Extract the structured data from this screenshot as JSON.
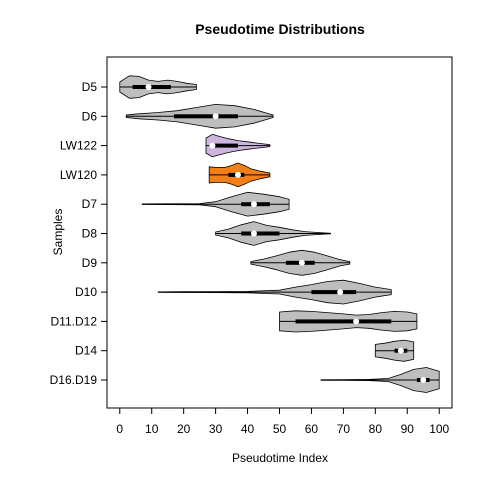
{
  "chart_data": {
    "type": "violin",
    "title": "Pseudotime Distributions",
    "xlabel": "Pseudotime Index",
    "ylabel": "Samples",
    "xlim": [
      -4,
      104
    ],
    "x_ticks": [
      0,
      10,
      20,
      30,
      40,
      50,
      60,
      70,
      80,
      90,
      100
    ],
    "grid": false,
    "legend": "none",
    "colors": {
      "default_fill": "#bebebe",
      "LW122": "#cdb5e0",
      "LW120": "#f57f17",
      "median": "#ffffff",
      "box": "#000000"
    },
    "categories": [
      "D5",
      "D6",
      "LW122",
      "LW120",
      "D7",
      "D8",
      "D9",
      "D10",
      "D11.D12",
      "D14",
      "D16.D19"
    ],
    "series": [
      {
        "label": "D5",
        "min": 0,
        "max": 24,
        "q1": 4,
        "median": 9,
        "q3": 16,
        "density": [
          [
            0,
            0.4
          ],
          [
            3,
            0.9
          ],
          [
            6,
            0.85
          ],
          [
            9,
            0.55
          ],
          [
            12,
            0.45
          ],
          [
            15,
            0.55
          ],
          [
            18,
            0.45
          ],
          [
            21,
            0.3
          ],
          [
            24,
            0.2
          ]
        ]
      },
      {
        "label": "D6",
        "min": 2,
        "max": 48,
        "q1": 17,
        "median": 30,
        "q3": 37,
        "density": [
          [
            2,
            0.1
          ],
          [
            6,
            0.2
          ],
          [
            12,
            0.3
          ],
          [
            18,
            0.45
          ],
          [
            24,
            0.7
          ],
          [
            30,
            0.95
          ],
          [
            36,
            0.85
          ],
          [
            42,
            0.55
          ],
          [
            48,
            0.1
          ]
        ]
      },
      {
        "label": "LW122",
        "min": 27,
        "max": 47,
        "q1": 29,
        "median": 29,
        "q3": 37,
        "density": [
          [
            27,
            0.6
          ],
          [
            29,
            0.9
          ],
          [
            31,
            0.75
          ],
          [
            34,
            0.55
          ],
          [
            37,
            0.4
          ],
          [
            40,
            0.3
          ],
          [
            43,
            0.2
          ],
          [
            47,
            0.08
          ]
        ]
      },
      {
        "label": "LW120",
        "min": 28,
        "max": 47,
        "q1": 34,
        "median": 37,
        "q3": 39,
        "density": [
          [
            28,
            0.65
          ],
          [
            30,
            0.6
          ],
          [
            33,
            0.6
          ],
          [
            35,
            0.75
          ],
          [
            37,
            0.95
          ],
          [
            39,
            0.75
          ],
          [
            41,
            0.5
          ],
          [
            44,
            0.3
          ],
          [
            47,
            0.15
          ]
        ]
      },
      {
        "label": "D7",
        "min": 7,
        "max": 53,
        "q1": 38,
        "median": 42,
        "q3": 47,
        "density": [
          [
            7,
            0.02
          ],
          [
            15,
            0.03
          ],
          [
            25,
            0.05
          ],
          [
            30,
            0.2
          ],
          [
            35,
            0.6
          ],
          [
            40,
            0.95
          ],
          [
            45,
            0.8
          ],
          [
            50,
            0.6
          ],
          [
            53,
            0.4
          ]
        ]
      },
      {
        "label": "D8",
        "min": 30,
        "max": 66,
        "q1": 38,
        "median": 42,
        "q3": 50,
        "density": [
          [
            30,
            0.12
          ],
          [
            34,
            0.35
          ],
          [
            38,
            0.7
          ],
          [
            42,
            0.95
          ],
          [
            46,
            0.65
          ],
          [
            50,
            0.5
          ],
          [
            54,
            0.3
          ],
          [
            58,
            0.15
          ],
          [
            62,
            0.08
          ],
          [
            66,
            0.02
          ]
        ]
      },
      {
        "label": "D9",
        "min": 41,
        "max": 72,
        "q1": 52,
        "median": 57,
        "q3": 61,
        "density": [
          [
            41,
            0.1
          ],
          [
            45,
            0.3
          ],
          [
            49,
            0.55
          ],
          [
            53,
            0.85
          ],
          [
            57,
            1.0
          ],
          [
            61,
            0.85
          ],
          [
            65,
            0.55
          ],
          [
            69,
            0.25
          ],
          [
            72,
            0.1
          ]
        ]
      },
      {
        "label": "D10",
        "min": 12,
        "max": 85,
        "q1": 60,
        "median": 69,
        "q3": 74,
        "density": [
          [
            12,
            0.02
          ],
          [
            20,
            0.03
          ],
          [
            30,
            0.04
          ],
          [
            40,
            0.06
          ],
          [
            50,
            0.15
          ],
          [
            55,
            0.4
          ],
          [
            60,
            0.6
          ],
          [
            65,
            0.85
          ],
          [
            70,
            0.95
          ],
          [
            75,
            0.7
          ],
          [
            80,
            0.4
          ],
          [
            85,
            0.2
          ]
        ]
      },
      {
        "label": "D11.D12",
        "min": 50,
        "max": 93,
        "q1": 55,
        "median": 74,
        "q3": 85,
        "density": [
          [
            50,
            0.75
          ],
          [
            55,
            0.85
          ],
          [
            60,
            0.8
          ],
          [
            65,
            0.7
          ],
          [
            70,
            0.6
          ],
          [
            74,
            0.5
          ],
          [
            78,
            0.55
          ],
          [
            82,
            0.7
          ],
          [
            86,
            0.8
          ],
          [
            90,
            0.75
          ],
          [
            93,
            0.6
          ]
        ]
      },
      {
        "label": "D14",
        "min": 80,
        "max": 92,
        "q1": 86,
        "median": 88,
        "q3": 90,
        "density": [
          [
            80,
            0.5
          ],
          [
            83,
            0.6
          ],
          [
            86,
            0.75
          ],
          [
            89,
            0.85
          ],
          [
            92,
            0.7
          ]
        ]
      },
      {
        "label": "D16.D19",
        "min": 63,
        "max": 100,
        "q1": 93,
        "median": 95,
        "q3": 97,
        "density": [
          [
            63,
            0.02
          ],
          [
            70,
            0.03
          ],
          [
            78,
            0.05
          ],
          [
            84,
            0.12
          ],
          [
            88,
            0.45
          ],
          [
            92,
            0.85
          ],
          [
            96,
            1.0
          ],
          [
            100,
            0.7
          ]
        ]
      }
    ]
  }
}
